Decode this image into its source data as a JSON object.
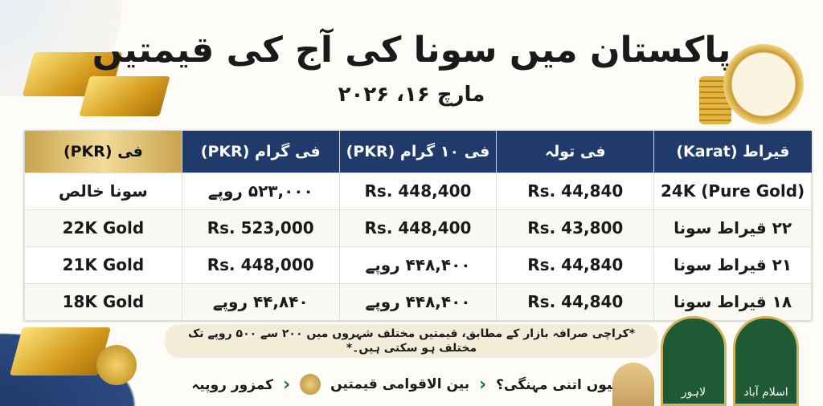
{
  "title": "پاکستان میں سونا کی آج کی قیمتیں",
  "date": "مارچ ۱۶، ۲۰۲۶",
  "colors": {
    "header": "#1f3a6b",
    "gold": "#d4ad55",
    "green": "#1e5a35"
  },
  "table": {
    "headers": [
      "قیراط (Karat)",
      "فی تولہ",
      "فی ۱۰ گرام (PKR)",
      "فی گرام (PKR)",
      "فی (PKR)"
    ],
    "rows": [
      [
        "24K (Pure Gold)",
        "Rs. 44,840",
        "Rs. 448,400",
        "۵۲۳,۰۰۰ روپے",
        "سونا خالص"
      ],
      [
        "۲۲ قیراط سونا",
        "Rs. 43,800",
        "Rs. 448,400",
        "Rs. 523,000",
        "22K Gold"
      ],
      [
        "۲۱ قیراط سونا",
        "Rs. 44,840",
        "۴۴۸,۴۰۰ روپے",
        "Rs. 448,000",
        "21K Gold"
      ],
      [
        "۱۸ قیراط سونا",
        "Rs. 44,840",
        "۴۴۸,۴۰۰ روپے",
        "۴۴,۸۴۰ روپے",
        "18K Gold"
      ]
    ]
  },
  "note": "*کراچی صرافہ بازار کے مطابق، قیمتیں مختلف شہروں میں ۲۰۰ سے ۵۰۰ روپے تک مختلف ہو سکتی ہیں۔*",
  "links": [
    "کیوں اتنی مہنگی؟",
    "بین الاقوامی قیمتیں",
    "کمزور روپیہ"
  ],
  "cities": [
    "لاہور",
    "اسلام آباد"
  ]
}
